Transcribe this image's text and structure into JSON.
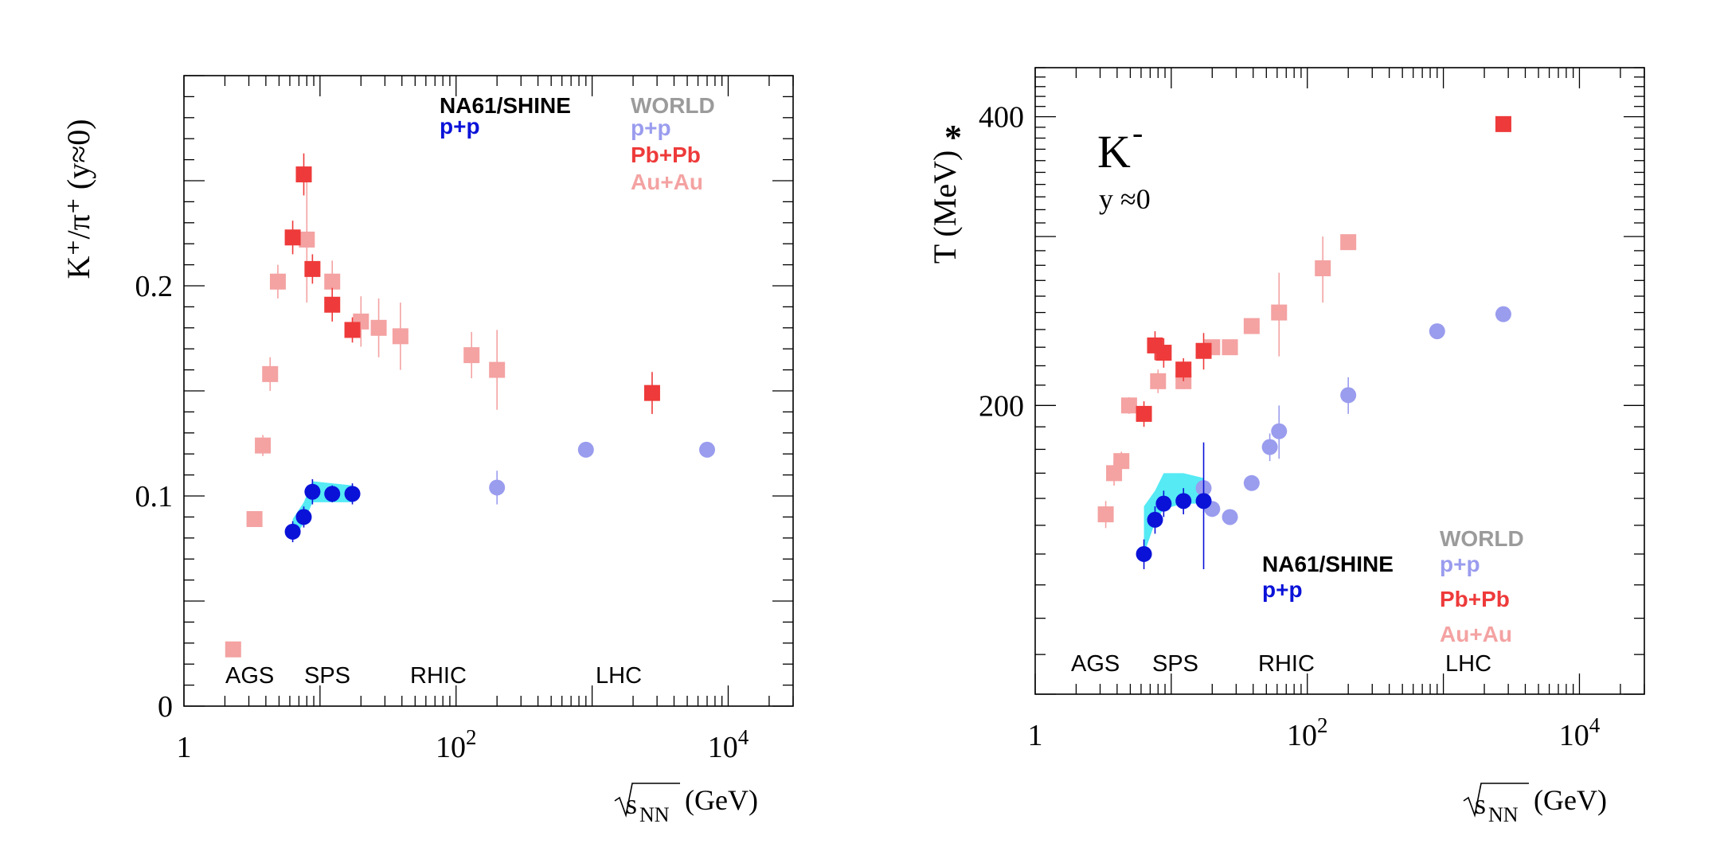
{
  "colors": {
    "na61_pp": "#0a12d8",
    "world_pp": "#9a9cee",
    "pbpb": "#ee3a3a",
    "auau": "#f4a2a2",
    "band": "#37e6f2",
    "world_label": "#9b9b9b",
    "axis": "#000000"
  },
  "chart_data": [
    {
      "type": "scatter",
      "id": "left",
      "ylabel": "K⁺/π⁺ (y≈0)",
      "xlabel": "√sNN (GeV)",
      "xscale": "log",
      "xlim": [
        1,
        30000
      ],
      "ylim": [
        0,
        0.3
      ],
      "yticks": [
        0,
        0.1,
        0.2
      ],
      "ytick_labels": [
        "0",
        "0.1",
        "0.2"
      ],
      "xtick_labels": [
        {
          "base": "1",
          "exp": ""
        },
        {
          "base": "10",
          "exp": "2"
        },
        {
          "base": "10",
          "exp": "4"
        }
      ],
      "xtick_values": [
        1,
        100,
        10000
      ],
      "legend_left": {
        "title": "NA61/SHINE",
        "entries": [
          "p+p"
        ]
      },
      "legend_right": {
        "title": "WORLD",
        "entries": [
          "p+p",
          "Pb+Pb",
          "Au+Au"
        ]
      },
      "regions": [
        "AGS",
        "SPS",
        "RHIC",
        "LHC"
      ],
      "region_x": [
        3,
        10,
        100,
        3000
      ],
      "band": {
        "x": [
          6.3,
          7.6,
          8.8,
          12.3,
          17.3
        ],
        "lo": [
          0.079,
          0.087,
          0.097,
          0.097,
          0.097
        ],
        "hi": [
          0.089,
          0.097,
          0.107,
          0.106,
          0.105
        ]
      },
      "series": [
        {
          "name": "Au+Au",
          "marker": "square",
          "color_key": "auau",
          "points": [
            [
              2.3,
              0.027,
              0
            ],
            [
              3.3,
              0.089,
              0
            ],
            [
              3.8,
              0.124,
              0.005
            ],
            [
              4.3,
              0.158,
              0.008
            ],
            [
              4.9,
              0.202,
              0.008
            ],
            [
              8.0,
              0.222,
              0.03
            ],
            [
              12.3,
              0.202,
              0.01
            ],
            [
              20,
              0.183,
              0.012
            ],
            [
              27,
              0.18,
              0.014
            ],
            [
              39,
              0.176,
              0.016
            ],
            [
              130,
              0.167,
              0.011
            ],
            [
              200,
              0.16,
              0.019
            ]
          ]
        },
        {
          "name": "Pb+Pb",
          "marker": "square",
          "color_key": "pbpb",
          "points": [
            [
              6.3,
              0.223,
              0.008
            ],
            [
              7.6,
              0.253,
              0.01
            ],
            [
              8.8,
              0.208,
              0.007
            ],
            [
              12.3,
              0.191,
              0.008
            ],
            [
              17.3,
              0.179,
              0.006
            ],
            [
              2760,
              0.149,
              0.01
            ]
          ]
        },
        {
          "name": "WORLD p+p",
          "marker": "circle",
          "color_key": "world_pp",
          "points": [
            [
              200,
              0.104,
              0.008
            ],
            [
              900,
              0.122,
              0
            ],
            [
              7000,
              0.122,
              0
            ]
          ]
        },
        {
          "name": "NA61/SHINE p+p",
          "marker": "circle",
          "color_key": "na61_pp",
          "points": [
            [
              6.3,
              0.083,
              0.005
            ],
            [
              7.6,
              0.09,
              0.005
            ],
            [
              8.8,
              0.102,
              0.006
            ],
            [
              12.3,
              0.101,
              0.004
            ],
            [
              17.3,
              0.101,
              0.005
            ]
          ]
        }
      ]
    },
    {
      "type": "scatter",
      "id": "right",
      "ylabel": "T* (MeV)",
      "xlabel": "√sNN (GeV)",
      "title": "K⁻",
      "subtitle": "y ≈0",
      "xscale": "log",
      "yscale": "log",
      "xlim": [
        1,
        30000
      ],
      "ylim": [
        100,
        450
      ],
      "yticks": [
        200,
        400
      ],
      "ytick_labels": [
        "200",
        "400"
      ],
      "xtick_labels": [
        {
          "base": "1",
          "exp": ""
        },
        {
          "base": "10",
          "exp": "2"
        },
        {
          "base": "10",
          "exp": "4"
        }
      ],
      "xtick_values": [
        1,
        100,
        10000
      ],
      "legend_left": {
        "title": "NA61/SHINE",
        "entries": [
          "p+p"
        ]
      },
      "legend_right": {
        "title": "WORLD",
        "entries": [
          "p+p",
          "Pb+Pb",
          "Au+Au"
        ]
      },
      "regions": [
        "AGS",
        "SPS",
        "RHIC",
        "LHC"
      ],
      "region_x": [
        3,
        10,
        100,
        3000
      ],
      "band": {
        "x": [
          6.3,
          7.6,
          8.8,
          12.3,
          17.3
        ],
        "lo": [
          140,
          151,
          156,
          158,
          158
        ],
        "hi": [
          157,
          163,
          170,
          170,
          168
        ]
      },
      "series": [
        {
          "name": "Au+Au",
          "marker": "square",
          "color_key": "auau",
          "points": [
            [
              3.3,
              154,
              5
            ],
            [
              3.8,
              170,
              5
            ],
            [
              4.3,
              175,
              4
            ],
            [
              4.9,
              200,
              4
            ],
            [
              8.0,
              212,
              6
            ],
            [
              12.3,
              212,
              4
            ],
            [
              20,
              230,
              4
            ],
            [
              27,
              230,
              4
            ],
            [
              39,
              242,
              4
            ],
            [
              62,
              250,
              25
            ],
            [
              130,
              278,
              22
            ],
            [
              200,
              296,
              5
            ]
          ]
        },
        {
          "name": "Pb+Pb",
          "marker": "square",
          "color_key": "pbpb",
          "points": [
            [
              6.3,
              196,
              6
            ],
            [
              7.6,
              231,
              8
            ],
            [
              8.8,
              227,
              8
            ],
            [
              12.3,
              218,
              6
            ],
            [
              17.3,
              228,
              10
            ],
            [
              2760,
              393,
              0
            ]
          ]
        },
        {
          "name": "WORLD p+p",
          "marker": "circle",
          "color_key": "world_pp",
          "points": [
            [
              17.3,
              164,
              0
            ],
            [
              20,
              156,
              0
            ],
            [
              27,
              153,
              0
            ],
            [
              39,
              166,
              0
            ],
            [
              53,
              181,
              6
            ],
            [
              62,
              188,
              12
            ],
            [
              200,
              205,
              9
            ],
            [
              900,
              239,
              0
            ],
            [
              2760,
              249,
              0
            ]
          ]
        },
        {
          "name": "NA61/SHINE p+p",
          "marker": "circle",
          "color_key": "na61_pp",
          "points": [
            [
              6.3,
              140,
              5
            ],
            [
              7.6,
              152,
              5
            ],
            [
              8.8,
              158,
              5
            ],
            [
              12.3,
              159,
              5
            ],
            [
              17.3,
              159,
              24
            ]
          ]
        }
      ]
    }
  ]
}
